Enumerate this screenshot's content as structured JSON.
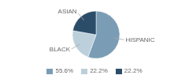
{
  "chart_data": {
    "type": "pie",
    "categories": [
      "HISPANIC",
      "BLACK",
      "ASIAN"
    ],
    "values": [
      55.6,
      22.2,
      22.2
    ],
    "value_labels": [
      "55.6%",
      "22.2%",
      "22.2%"
    ],
    "colors": [
      "#7a9db5",
      "#bcd0db",
      "#2b4d6a"
    ],
    "legend": "bottom"
  }
}
